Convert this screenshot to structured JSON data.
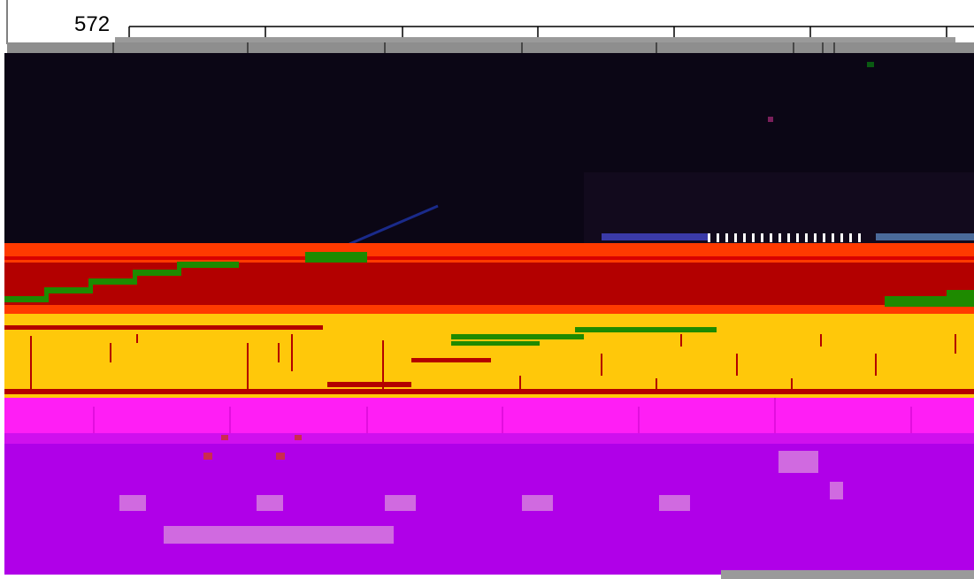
{
  "header": {
    "frame_number": "572"
  },
  "colors": {
    "background": "#ffffff",
    "ruler": "#000000",
    "dark_band": "#0b0615",
    "orange_red": "#ff3a00",
    "dark_red": "#b30000",
    "green": "#1e8a00",
    "yellow": "#ffc80a",
    "magenta": "#ff1ef5",
    "purple": "#b000e8",
    "gray": "#9a9a9a"
  }
}
